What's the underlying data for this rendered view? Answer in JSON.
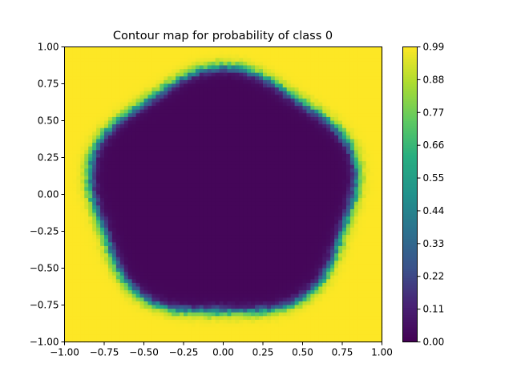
{
  "chart_data": {
    "type": "heatmap",
    "title": "Contour map for probability of class 0",
    "xlabel": "",
    "ylabel": "",
    "xlim": [
      -1.0,
      1.0
    ],
    "ylim": [
      -1.0,
      1.0
    ],
    "x_ticks": [
      "−1.00",
      "−0.75",
      "−0.50",
      "−0.25",
      "0.00",
      "0.25",
      "0.50",
      "0.75",
      "1.00"
    ],
    "y_ticks": [
      "−1.00",
      "−0.75",
      "−0.50",
      "−0.25",
      "0.00",
      "0.25",
      "0.50",
      "0.75",
      "1.00"
    ],
    "x_tick_values": [
      -1.0,
      -0.75,
      -0.5,
      -0.25,
      0.0,
      0.25,
      0.5,
      0.75,
      1.0
    ],
    "y_tick_values": [
      -1.0,
      -0.75,
      -0.5,
      -0.25,
      0.0,
      0.25,
      0.5,
      0.75,
      1.0
    ],
    "colormap": "viridis",
    "colorbar": {
      "range": [
        0.0,
        0.99
      ],
      "tick_values": [
        0.0,
        0.11,
        0.22,
        0.33,
        0.44,
        0.55,
        0.66,
        0.77,
        0.88,
        0.99
      ],
      "tick_labels": [
        "0.00",
        "0.11",
        "0.22",
        "0.33",
        "0.44",
        "0.55",
        "0.66",
        "0.77",
        "0.88",
        "0.99"
      ]
    },
    "field": {
      "inside_value": 0.02,
      "outside_value": 0.99,
      "boundary_radius": 0.83
    },
    "grid": false
  }
}
